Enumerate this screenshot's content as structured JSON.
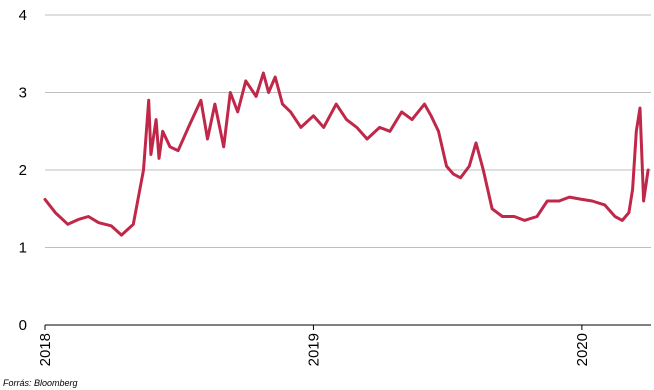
{
  "source": "Forrás: Bloomberg",
  "chart_data": {
    "type": "line",
    "title": "",
    "xlabel": "",
    "ylabel": "",
    "ylim": [
      0,
      4
    ],
    "y_ticks": [
      "0",
      "1",
      "2",
      "3",
      "4"
    ],
    "x_ticks": [
      "2018",
      "2019",
      "2020"
    ],
    "grid": true,
    "series": [
      {
        "color": "#c0284a",
        "x": [
          "2018-01-01",
          "2018-01-15",
          "2018-02-01",
          "2018-02-15",
          "2018-03-01",
          "2018-03-15",
          "2018-04-01",
          "2018-04-15",
          "2018-05-01",
          "2018-05-08",
          "2018-05-15",
          "2018-05-22",
          "2018-05-25",
          "2018-06-01",
          "2018-06-05",
          "2018-06-10",
          "2018-06-20",
          "2018-07-01",
          "2018-07-15",
          "2018-08-01",
          "2018-08-10",
          "2018-08-20",
          "2018-09-01",
          "2018-09-10",
          "2018-09-20",
          "2018-10-01",
          "2018-10-15",
          "2018-10-25",
          "2018-11-01",
          "2018-11-10",
          "2018-11-20",
          "2018-12-01",
          "2018-12-15",
          "2019-01-01",
          "2019-01-15",
          "2019-02-01",
          "2019-02-15",
          "2019-03-01",
          "2019-03-15",
          "2019-04-01",
          "2019-04-15",
          "2019-05-01",
          "2019-05-15",
          "2019-06-01",
          "2019-06-10",
          "2019-06-20",
          "2019-07-01",
          "2019-07-10",
          "2019-07-20",
          "2019-08-01",
          "2019-08-10",
          "2019-08-20",
          "2019-09-01",
          "2019-09-15",
          "2019-10-01",
          "2019-10-15",
          "2019-11-01",
          "2019-11-15",
          "2019-12-01",
          "2019-12-15",
          "2020-01-01",
          "2020-01-15",
          "2020-02-01",
          "2020-02-15",
          "2020-02-25",
          "2020-03-05",
          "2020-03-10",
          "2020-03-15",
          "2020-03-20",
          "2020-03-25",
          "2020-03-31"
        ],
        "values": [
          1.62,
          1.45,
          1.3,
          1.36,
          1.4,
          1.32,
          1.28,
          1.16,
          1.3,
          1.65,
          2.0,
          2.9,
          2.2,
          2.65,
          2.15,
          2.5,
          2.3,
          2.25,
          2.55,
          2.9,
          2.4,
          2.85,
          2.3,
          3.0,
          2.75,
          3.15,
          2.95,
          3.25,
          3.0,
          3.2,
          2.85,
          2.75,
          2.55,
          2.7,
          2.55,
          2.85,
          2.65,
          2.55,
          2.4,
          2.55,
          2.5,
          2.75,
          2.65,
          2.85,
          2.7,
          2.5,
          2.05,
          1.95,
          1.9,
          2.05,
          2.35,
          2.0,
          1.5,
          1.4,
          1.4,
          1.35,
          1.4,
          1.6,
          1.6,
          1.65,
          1.62,
          1.6,
          1.55,
          1.4,
          1.35,
          1.45,
          1.75,
          2.5,
          2.8,
          1.6,
          2.0
        ]
      }
    ]
  }
}
